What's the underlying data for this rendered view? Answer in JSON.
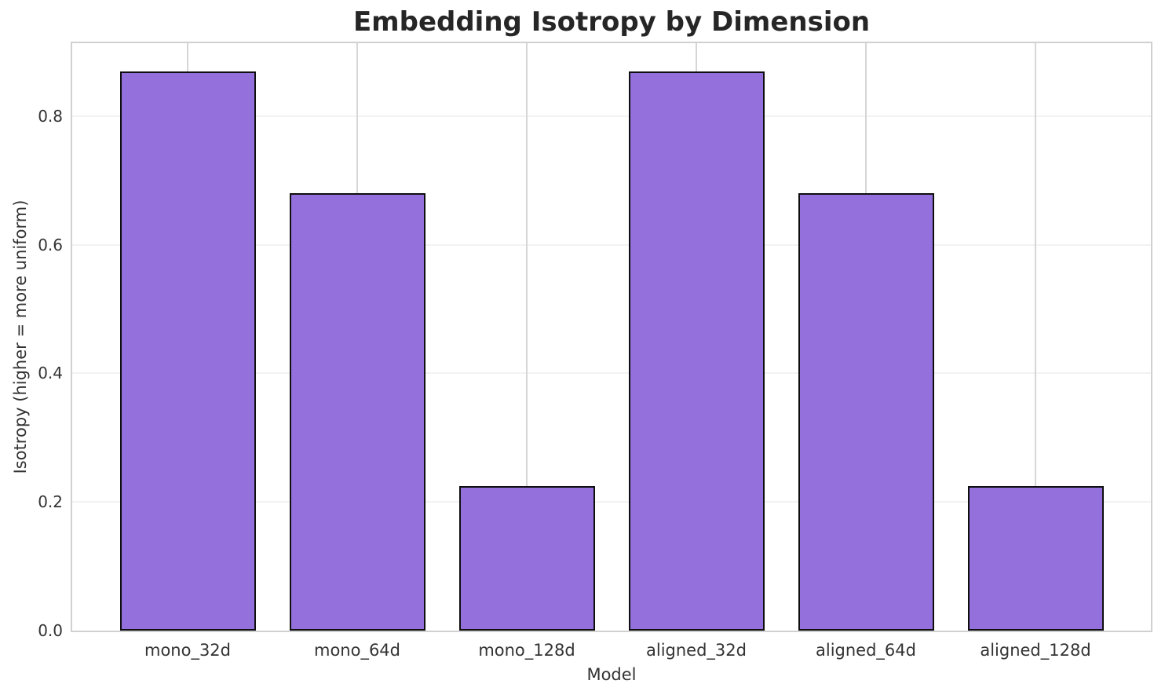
{
  "chart_data": {
    "type": "bar",
    "title": "Embedding Isotropy by Dimension",
    "xlabel": "Model",
    "ylabel": "Isotropy (higher = more uniform)",
    "categories": [
      "mono_32d",
      "mono_64d",
      "mono_128d",
      "aligned_32d",
      "aligned_64d",
      "aligned_128d"
    ],
    "values": [
      0.87,
      0.68,
      0.225,
      0.87,
      0.68,
      0.225
    ],
    "ylim": [
      0,
      0.9135
    ],
    "yticks": [
      0.0,
      0.2,
      0.4,
      0.6,
      0.8
    ],
    "ytick_labels": [
      "0.0",
      "0.2",
      "0.4",
      "0.6",
      "0.8"
    ],
    "grid": true,
    "legend": null,
    "colors": {
      "bar_fill": "#9370db",
      "bar_edge": "#0f0f0f",
      "grid_vertical": "#d6d6d6",
      "grid_horizontal": "#f2f2f2",
      "spine": "#d0d0d0",
      "tick_text": "#333333",
      "title_text": "#262626"
    }
  }
}
